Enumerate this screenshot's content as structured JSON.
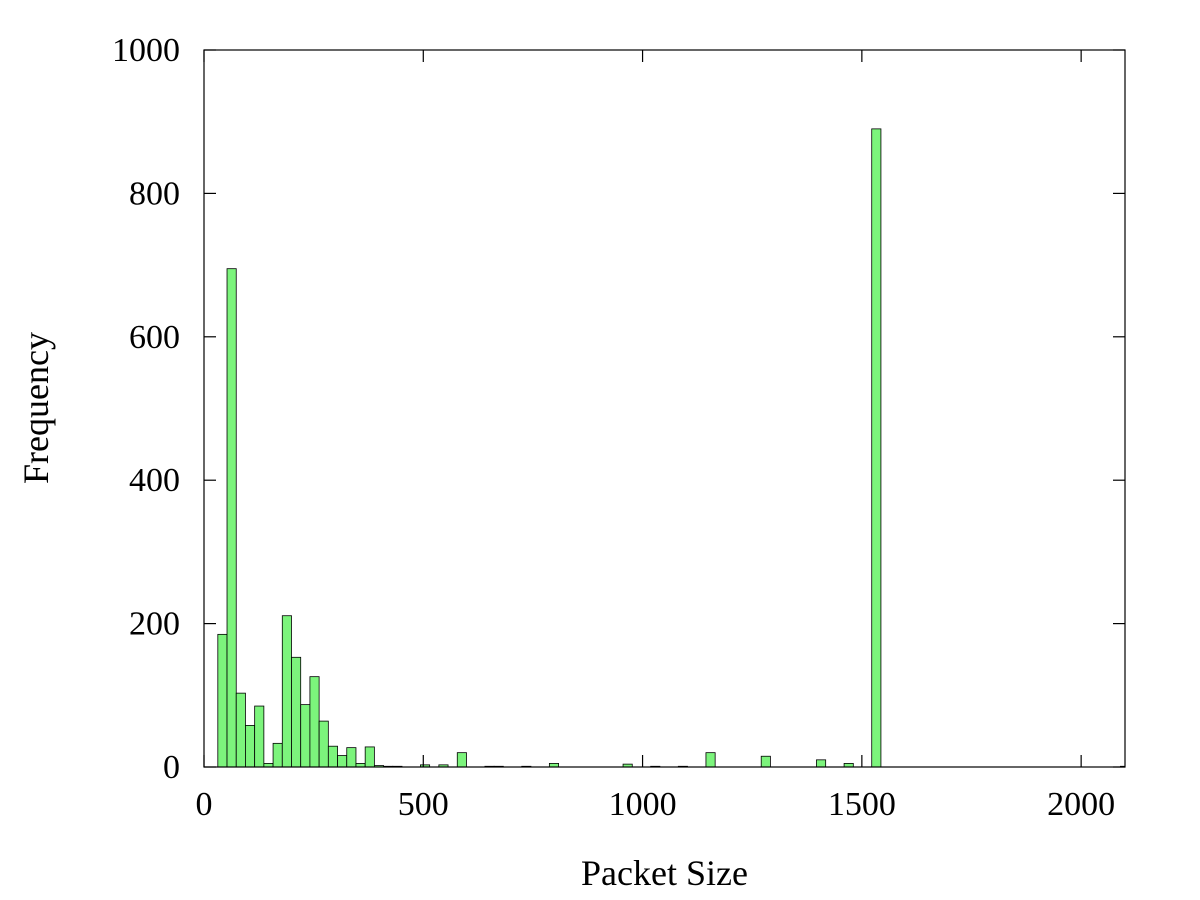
{
  "chart_data": {
    "type": "bar",
    "title": "",
    "xlabel": "Packet Size",
    "ylabel": "Frequency",
    "xlim": [
      0,
      2100
    ],
    "ylim": [
      0,
      1000
    ],
    "x_ticks": [
      0,
      500,
      1000,
      1500,
      2000
    ],
    "y_ticks": [
      0,
      200,
      400,
      600,
      800,
      1000
    ],
    "bin_width": 21,
    "bar_color": "#7cf47c",
    "legend": "none",
    "grid": false,
    "bars": [
      {
        "x": 42,
        "y": 185
      },
      {
        "x": 63,
        "y": 695
      },
      {
        "x": 84,
        "y": 103
      },
      {
        "x": 105,
        "y": 58
      },
      {
        "x": 126,
        "y": 85
      },
      {
        "x": 147,
        "y": 5
      },
      {
        "x": 168,
        "y": 33
      },
      {
        "x": 189,
        "y": 211
      },
      {
        "x": 210,
        "y": 153
      },
      {
        "x": 231,
        "y": 87
      },
      {
        "x": 252,
        "y": 126
      },
      {
        "x": 273,
        "y": 64
      },
      {
        "x": 294,
        "y": 29
      },
      {
        "x": 315,
        "y": 16
      },
      {
        "x": 336,
        "y": 27
      },
      {
        "x": 357,
        "y": 5
      },
      {
        "x": 378,
        "y": 28
      },
      {
        "x": 399,
        "y": 2
      },
      {
        "x": 420,
        "y": 1
      },
      {
        "x": 441,
        "y": 1
      },
      {
        "x": 504,
        "y": 3
      },
      {
        "x": 546,
        "y": 3
      },
      {
        "x": 588,
        "y": 20
      },
      {
        "x": 651,
        "y": 1
      },
      {
        "x": 672,
        "y": 1
      },
      {
        "x": 735,
        "y": 1
      },
      {
        "x": 798,
        "y": 5
      },
      {
        "x": 966,
        "y": 4
      },
      {
        "x": 1029,
        "y": 1
      },
      {
        "x": 1092,
        "y": 1
      },
      {
        "x": 1155,
        "y": 20
      },
      {
        "x": 1281,
        "y": 15
      },
      {
        "x": 1407,
        "y": 10
      },
      {
        "x": 1470,
        "y": 5
      },
      {
        "x": 1533,
        "y": 890
      },
      {
        "x": 2100,
        "y": 1
      }
    ]
  }
}
